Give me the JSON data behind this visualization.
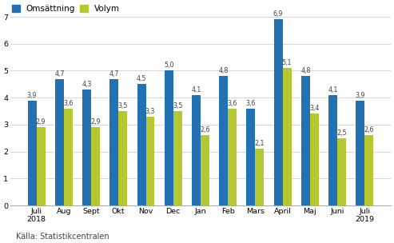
{
  "categories": [
    "Juli\n2018",
    "Aug",
    "Sept",
    "Okt",
    "Nov",
    "Dec",
    "Jan",
    "Feb",
    "Mars",
    "April",
    "Maj",
    "Juni",
    "Juli\n2019"
  ],
  "omsattning": [
    3.9,
    4.7,
    4.3,
    4.7,
    4.5,
    5.0,
    4.1,
    4.8,
    3.6,
    6.9,
    4.8,
    4.1,
    3.9
  ],
  "volym": [
    2.9,
    3.6,
    2.9,
    3.5,
    3.3,
    3.5,
    2.6,
    3.6,
    2.1,
    5.1,
    3.4,
    2.5,
    2.6
  ],
  "color_omsattning": "#2271b3",
  "color_volym": "#c5d dozen",
  "color_volym_hex": "#b5c832",
  "legend_omsattning": "Omsättning",
  "legend_volym": "Volym",
  "ylim": [
    0,
    7.5
  ],
  "yticks": [
    0,
    1,
    2,
    3,
    4,
    5,
    6,
    7
  ],
  "source": "Källa: Statistikcentralen",
  "bar_width": 0.32,
  "label_fontsize": 5.8,
  "tick_fontsize": 6.8,
  "legend_fontsize": 7.5,
  "source_fontsize": 7.0
}
